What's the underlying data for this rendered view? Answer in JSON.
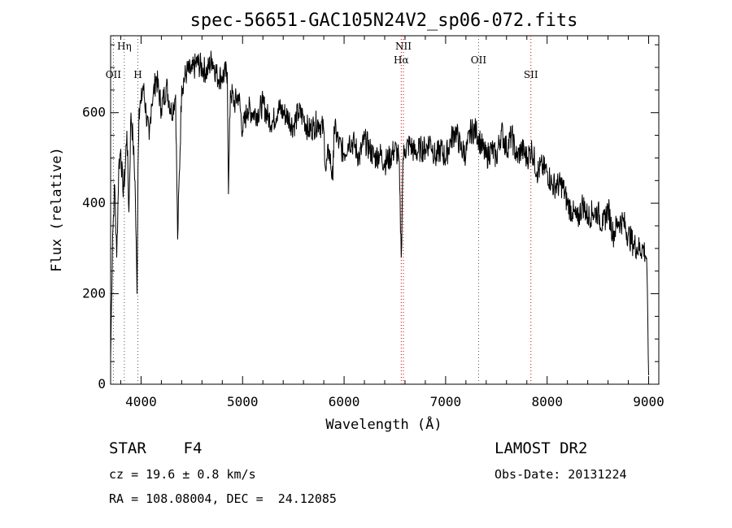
{
  "chart_data": {
    "type": "line",
    "title": "spec-56651-GAC105N24V2_sp06-072.fits",
    "xlabel": "Wavelength (Å)",
    "ylabel": "Flux (relative)",
    "xlim": [
      3700,
      9100
    ],
    "ylim": [
      0,
      770
    ],
    "xticks": [
      4000,
      5000,
      6000,
      7000,
      8000,
      9000
    ],
    "yticks": [
      0,
      200,
      400,
      600
    ],
    "grid": false,
    "series": [
      {
        "x": [
          3700,
          3720,
          3740,
          3760,
          3780,
          3800,
          3820,
          3840,
          3860,
          3880,
          3900,
          3920,
          3940,
          3960,
          3970,
          3980,
          4000,
          4020,
          4050,
          4080,
          4101,
          4120,
          4150,
          4200,
          4250,
          4300,
          4340,
          4360,
          4400,
          4450,
          4500,
          4550,
          4600,
          4650,
          4700,
          4750,
          4800,
          4850,
          4861,
          4880,
          4920,
          4960,
          5000,
          5050,
          5100,
          5150,
          5200,
          5250,
          5300,
          5350,
          5400,
          5450,
          5500,
          5550,
          5600,
          5650,
          5700,
          5750,
          5800,
          5820,
          5850,
          5890,
          5900,
          5950,
          6000,
          6050,
          6100,
          6150,
          6200,
          6250,
          6300,
          6350,
          6400,
          6450,
          6500,
          6540,
          6563,
          6580,
          6600,
          6650,
          6700,
          6750,
          6800,
          6850,
          6900,
          6950,
          7000,
          7050,
          7100,
          7150,
          7200,
          7250,
          7300,
          7350,
          7400,
          7450,
          7500,
          7550,
          7600,
          7650,
          7700,
          7750,
          7800,
          7850,
          7900,
          7950,
          8000,
          8050,
          8100,
          8150,
          8200,
          8250,
          8300,
          8350,
          8400,
          8450,
          8500,
          8550,
          8600,
          8650,
          8700,
          8750,
          8800,
          8850,
          8900,
          8950,
          8980,
          9000
        ],
        "y": [
          60,
          330,
          440,
          280,
          480,
          520,
          430,
          460,
          560,
          380,
          600,
          540,
          450,
          200,
          480,
          610,
          620,
          660,
          600,
          540,
          620,
          640,
          680,
          610,
          660,
          600,
          640,
          320,
          660,
          690,
          690,
          710,
          700,
          690,
          720,
          680,
          680,
          690,
          420,
          650,
          620,
          640,
          560,
          610,
          600,
          600,
          620,
          590,
          580,
          610,
          600,
          590,
          570,
          600,
          590,
          560,
          570,
          580,
          560,
          470,
          520,
          450,
          570,
          530,
          510,
          540,
          530,
          500,
          540,
          520,
          500,
          510,
          490,
          500,
          520,
          500,
          280,
          500,
          520,
          530,
          510,
          520,
          520,
          540,
          500,
          520,
          500,
          540,
          560,
          520,
          510,
          560,
          560,
          530,
          500,
          520,
          500,
          560,
          520,
          550,
          500,
          520,
          500,
          520,
          470,
          480,
          470,
          440,
          440,
          440,
          400,
          380,
          360,
          400,
          370,
          380,
          380,
          350,
          390,
          330,
          360,
          360,
          330,
          310,
          300,
          300,
          280,
          20
        ]
      }
    ],
    "lines": [
      {
        "label": "OII",
        "wavelength": 3727,
        "color": "#555555"
      },
      {
        "label": "Hη",
        "wavelength": 3835,
        "color": "#555555"
      },
      {
        "label": "H",
        "wavelength": 3968,
        "color": "#555555"
      },
      {
        "label": "NII",
        "wavelength": 6584,
        "color": "#cc0000"
      },
      {
        "label": "Hα",
        "wavelength": 6563,
        "color": "#cc0000"
      },
      {
        "label": "OII",
        "wavelength": 7325,
        "color": "#555555"
      },
      {
        "label": "SII",
        "wavelength": 7840,
        "color": "#cc0000"
      }
    ]
  },
  "info": {
    "object_type": "STAR",
    "subclass": "F4",
    "cz": "cz = 19.6 ± 0.8 km/s",
    "radec": "RA = 108.08004, DEC =  24.12085",
    "survey": "LAMOST DR2",
    "obs_date": "Obs-Date: 20131224"
  }
}
